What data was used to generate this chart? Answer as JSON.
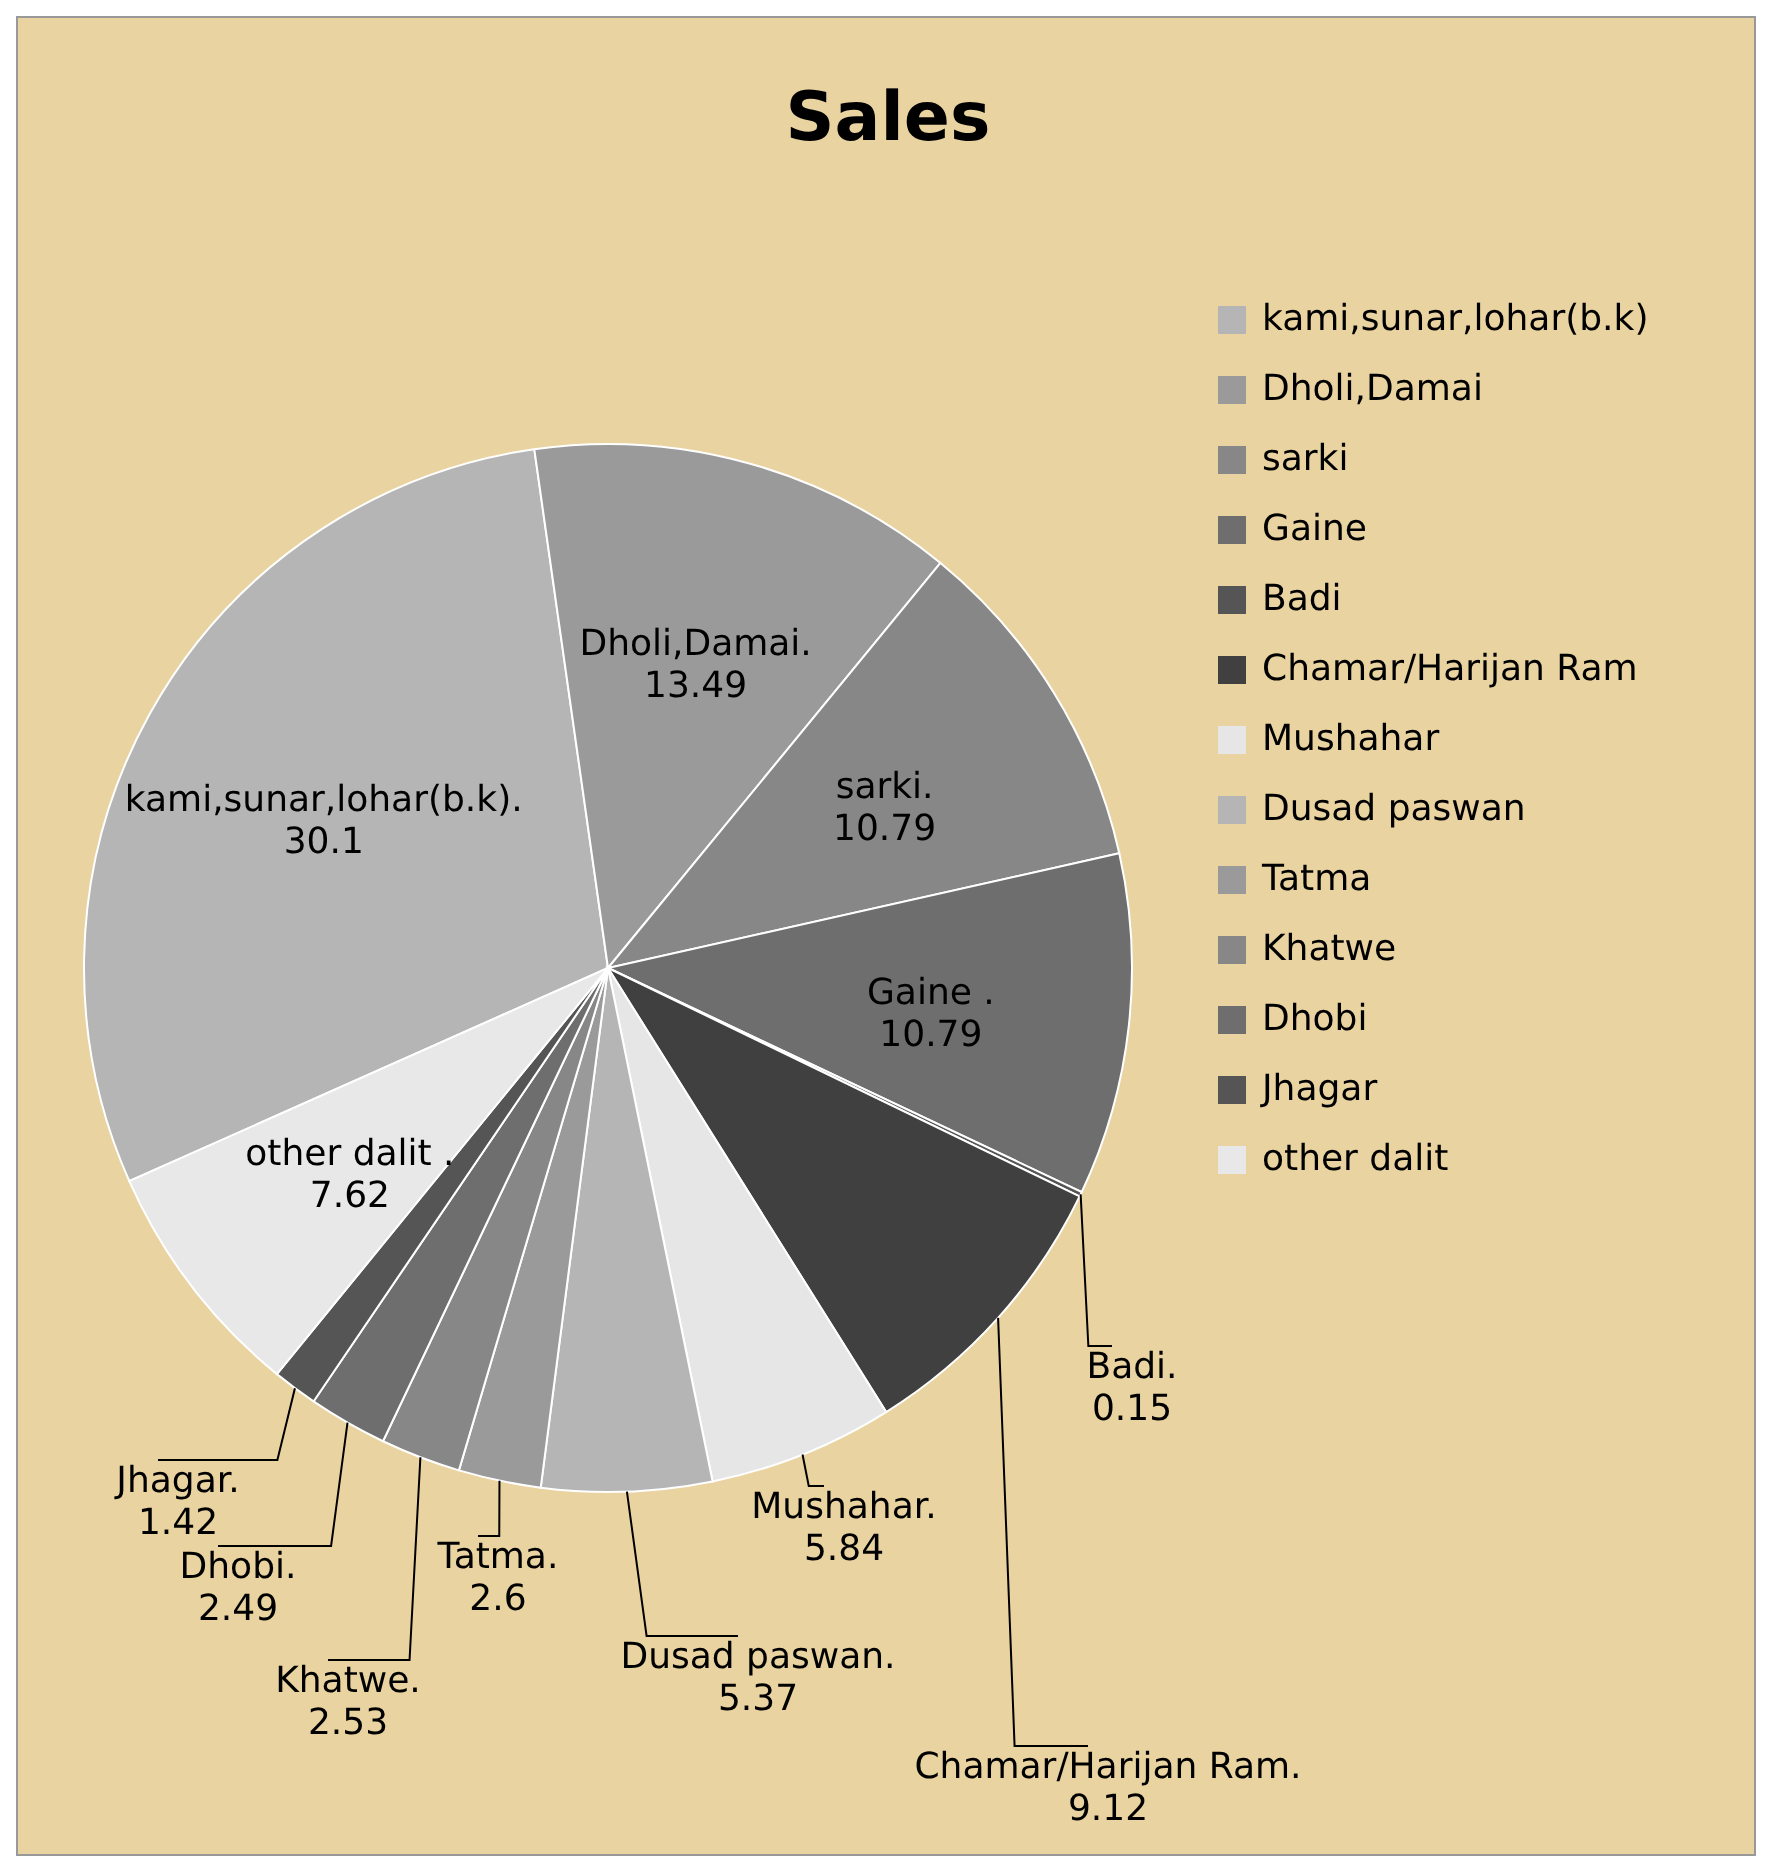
{
  "chart_data": {
    "type": "pie",
    "title": "Sales",
    "categories": [
      "kami,sunar,lohar(b.k)",
      "Dholi,Damai",
      "sarki",
      "Gaine",
      "Badi",
      "Chamar/Harijan Ram",
      "Mushahar",
      "Dusad paswan",
      "Tatma",
      "Khatwe",
      "Dhobi",
      "Jhagar",
      "other dalit"
    ],
    "values": [
      30.1,
      13.49,
      10.79,
      10.79,
      0.15,
      9.12,
      5.84,
      5.37,
      2.6,
      2.53,
      2.49,
      1.42,
      7.62
    ],
    "colors": [
      "#b5b5b5",
      "#9a9a9a",
      "#878787",
      "#6e6e6e",
      "#555555",
      "#404040",
      "#e6e6e6",
      "#b5b5b5",
      "#9a9a9a",
      "#878787",
      "#6e6e6e",
      "#555555",
      "#e8e8e8"
    ],
    "value_labels": [
      "kami,sunar,lohar(b.k). 30.1",
      "Dholi,Damai. 13.49",
      "sarki. 10.79",
      "Gaine . 10.79",
      "Badi. 0.15",
      "Chamar/Harijan Ram. 9.12",
      "Mushahar. 5.84",
      "Dusad paswan. 5.37",
      "Tatma. 2.6",
      "Khatwe. 2.53",
      "Dhobi. 2.49",
      "Jhagar. 1.42",
      "other dalit . 7.62"
    ],
    "legend": "right"
  }
}
